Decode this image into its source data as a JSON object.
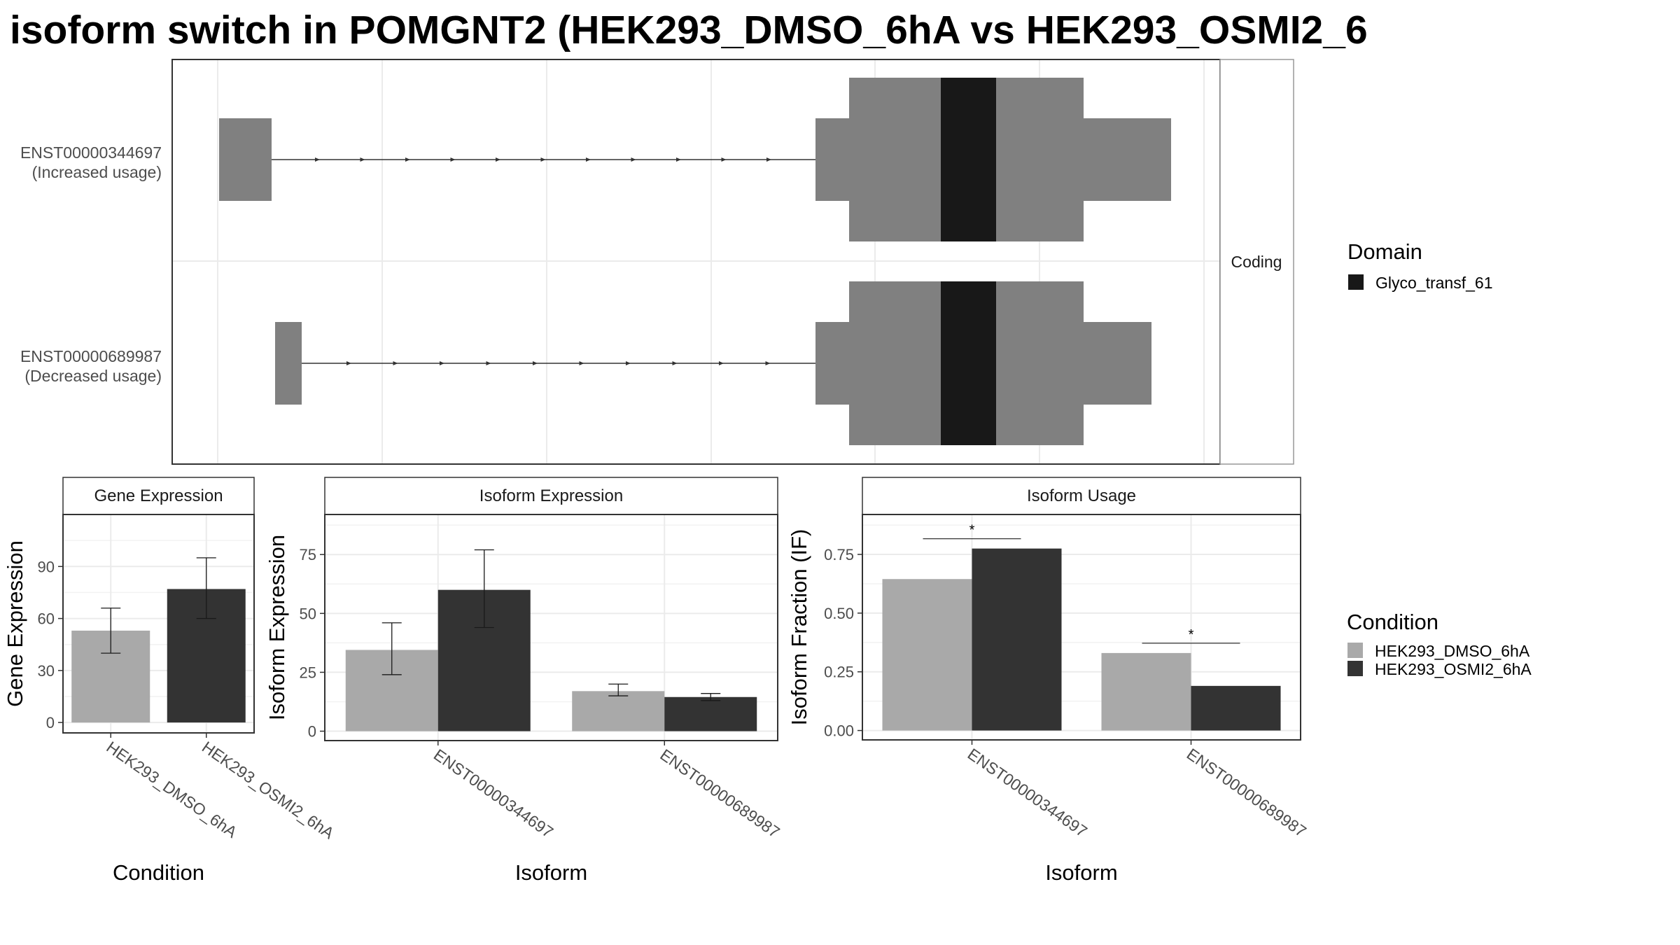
{
  "title": "isoform switch in POMGNT2 (HEK293_DMSO_6hA vs HEK293_OSMI2_6",
  "colors": {
    "condition_1": "#a9a9a9",
    "condition_2": "#333333",
    "exon": "#808080",
    "domain": "#181818",
    "grid": "#ebebeb",
    "panel_border": "#333333",
    "strip_border": "#999999"
  },
  "chart_data": [
    {
      "type": "transcript_structure",
      "panel_strip": "Coding",
      "transcripts": [
        {
          "id": "ENST00000344697",
          "label": "ENST00000344697",
          "usage": "(Increased usage)"
        },
        {
          "id": "ENST00000689987",
          "label": "ENST00000689987",
          "usage": "(Decreased usage)"
        }
      ],
      "legend": {
        "title": "Domain",
        "entries": [
          {
            "label": "Glyco_transf_61",
            "color": "#181818"
          }
        ]
      }
    },
    {
      "type": "bar",
      "strip": "Gene Expression",
      "xlabel": "Condition",
      "ylabel": "Gene Expression",
      "categories": [
        "HEK293_DMSO_6hA",
        "HEK293_OSMI2_6hA"
      ],
      "values": [
        53,
        77
      ],
      "err_low": [
        40,
        60
      ],
      "err_high": [
        66,
        95
      ],
      "ylim": [
        -6,
        120
      ],
      "yticks": [
        0,
        30,
        60,
        90
      ],
      "ytick_labels": [
        "0",
        "30",
        "60",
        "90"
      ]
    },
    {
      "type": "bar",
      "strip": "Isoform Expression",
      "xlabel": "Isoform",
      "ylabel": "Isoform Expression",
      "categories": [
        "ENST00000344697",
        "ENST00000689987"
      ],
      "series": [
        {
          "condition": "HEK293_DMSO_6hA",
          "values": [
            34.5,
            17
          ],
          "err_low": [
            24,
            15
          ],
          "err_high": [
            46,
            20
          ]
        },
        {
          "condition": "HEK293_OSMI2_6hA",
          "values": [
            60,
            14.5
          ],
          "err_low": [
            44,
            13
          ],
          "err_high": [
            77,
            16
          ]
        }
      ],
      "ylim": [
        -4,
        92
      ],
      "yticks": [
        0,
        25,
        50,
        75
      ],
      "ytick_labels": [
        "0",
        "25",
        "50",
        "75"
      ]
    },
    {
      "type": "bar",
      "strip": "Isoform Usage",
      "xlabel": "Isoform",
      "ylabel": "Isoform Fraction (IF)",
      "categories": [
        "ENST00000344697",
        "ENST00000689987"
      ],
      "series": [
        {
          "condition": "HEK293_DMSO_6hA",
          "values": [
            0.645,
            0.33
          ]
        },
        {
          "condition": "HEK293_OSMI2_6hA",
          "values": [
            0.775,
            0.19
          ]
        }
      ],
      "significance": [
        "*",
        "*"
      ],
      "ylim": [
        -0.04,
        0.92
      ],
      "yticks": [
        0,
        0.25,
        0.5,
        0.75
      ],
      "ytick_labels": [
        "0.00",
        "0.25",
        "0.50",
        "0.75"
      ]
    }
  ],
  "condition_legend": {
    "title": "Condition",
    "entries": [
      {
        "label": "HEK293_DMSO_6hA",
        "color": "#a9a9a9"
      },
      {
        "label": "HEK293_OSMI2_6hA",
        "color": "#333333"
      }
    ]
  }
}
